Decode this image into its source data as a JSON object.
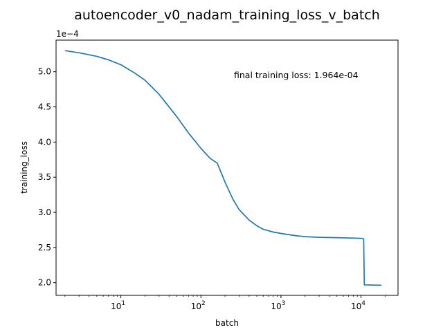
{
  "chart_data": {
    "type": "line",
    "title": "autoencoder_v0_nadam_training_loss_v_batch",
    "xlabel": "batch",
    "ylabel": "training_loss",
    "x_scale": "log",
    "xlim": [
      1.55,
      29000
    ],
    "ylim": [
      1.82,
      5.45
    ],
    "y_multiplier_label": "1e−4",
    "x_ticks": [
      {
        "value": 10,
        "base": "10",
        "exp": "1"
      },
      {
        "value": 100,
        "base": "10",
        "exp": "2"
      },
      {
        "value": 1000,
        "base": "10",
        "exp": "3"
      },
      {
        "value": 10000,
        "base": "10",
        "exp": "4"
      }
    ],
    "y_ticks": [
      2.0,
      2.5,
      3.0,
      3.5,
      4.0,
      4.5,
      5.0
    ],
    "y_tick_labels": [
      "2.0",
      "2.5",
      "3.0",
      "3.5",
      "4.0",
      "4.5",
      "5.0"
    ],
    "annotation": "final training loss: 1.964e-04",
    "grid": false,
    "series": [
      {
        "color": "#1f77b4",
        "x": [
          2,
          3,
          5,
          7,
          10,
          15,
          20,
          30,
          50,
          70,
          100,
          130,
          160,
          200,
          250,
          300,
          400,
          500,
          600,
          800,
          1000,
          1500,
          2000,
          3000,
          5000,
          8000,
          10500,
          10800,
          11000,
          13000,
          15000,
          18000
        ],
        "y": [
          5.3,
          5.27,
          5.22,
          5.17,
          5.1,
          4.98,
          4.88,
          4.68,
          4.36,
          4.13,
          3.91,
          3.77,
          3.7,
          3.43,
          3.19,
          3.04,
          2.89,
          2.81,
          2.76,
          2.72,
          2.7,
          2.67,
          2.655,
          2.645,
          2.64,
          2.635,
          2.63,
          2.62,
          1.97,
          1.968,
          1.966,
          1.964
        ]
      }
    ]
  }
}
